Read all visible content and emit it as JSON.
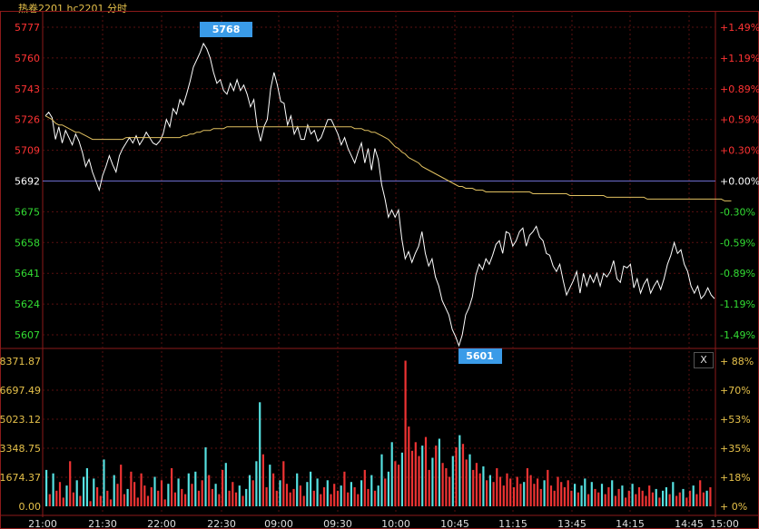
{
  "title": "热卷2201 hc2201 分时",
  "colors": {
    "up": "#ff3333",
    "down": "#33dd33",
    "neutral": "#ffffff",
    "volume_axis": "#e6c14a",
    "price_line": "#ffffff",
    "avg_line": "#e0c060",
    "badge": "#3a9be8",
    "vol_up": "#ee3333",
    "vol_down": "#55e0e0"
  },
  "close_label": "X",
  "chart_data": {
    "type": "line",
    "title": "",
    "prev_close": 5692,
    "price_axis": {
      "ticks": [
        5777,
        5760,
        5743,
        5726,
        5709,
        5692,
        5675,
        5658,
        5641,
        5624,
        5607
      ],
      "labels": [
        "5777",
        "5760",
        "5743",
        "5726",
        "5709",
        "5692",
        "5675",
        "5658",
        "5641",
        "5624",
        "5607"
      ],
      "ylim": [
        5600,
        5780
      ]
    },
    "percent_axis": {
      "labels": [
        "+1.49%",
        "+1.19%",
        "+0.89%",
        "+0.59%",
        "+0.30%",
        "+0.00%",
        "-0.30%",
        "-0.59%",
        "-0.89%",
        "-1.19%",
        "-1.49%"
      ]
    },
    "volume_axis": {
      "ticks": [
        8371.87,
        6697.49,
        5023.12,
        3348.75,
        1674.37,
        0
      ],
      "labels": [
        "8371.87",
        "6697.49",
        "5023.12",
        "3348.75",
        "1674.37",
        "0.00"
      ],
      "percent_labels": [
        "+ 88%",
        "+70%",
        "+53%",
        "+35%",
        "+18%",
        "+ 0%"
      ]
    },
    "x_labels": [
      "21:00",
      "21:30",
      "22:00",
      "22:30",
      "09:00",
      "09:30",
      "10:00",
      "10:45",
      "11:15",
      "13:45",
      "14:15",
      "14:45",
      "15:00"
    ],
    "high": {
      "value": 5768,
      "label": "5768"
    },
    "low": {
      "value": 5601,
      "label": "5601"
    },
    "series": [
      {
        "values": [
          5728,
          5730,
          5727,
          5715,
          5722,
          5713,
          5720,
          5716,
          5712,
          5718,
          5714,
          5708,
          5700,
          5704,
          5697,
          5692,
          5687,
          5695,
          5700,
          5706,
          5701,
          5697,
          5706,
          5710,
          5713,
          5716,
          5713,
          5717,
          5712,
          5715,
          5719,
          5716,
          5713,
          5712,
          5714,
          5718,
          5726,
          5722,
          5732,
          5729,
          5737,
          5734,
          5740,
          5747,
          5755,
          5759,
          5763,
          5768,
          5765,
          5760,
          5752,
          5746,
          5748,
          5742,
          5740,
          5746,
          5742,
          5748,
          5742,
          5745,
          5740,
          5733,
          5737,
          5722,
          5714,
          5722,
          5726,
          5743,
          5752,
          5745,
          5736,
          5735,
          5723,
          5728,
          5718,
          5722,
          5715,
          5715,
          5723,
          5718,
          5720,
          5714,
          5716,
          5721,
          5726,
          5726,
          5722,
          5718,
          5712,
          5716,
          5710,
          5706,
          5702,
          5708,
          5713,
          5702,
          5710,
          5698,
          5710,
          5704,
          5690,
          5682,
          5672,
          5676,
          5672,
          5676,
          5660,
          5649,
          5653,
          5647,
          5652,
          5656,
          5664,
          5652,
          5645,
          5649,
          5639,
          5634,
          5626,
          5622,
          5618,
          5610,
          5606,
          5601,
          5607,
          5618,
          5622,
          5628,
          5640,
          5646,
          5643,
          5649,
          5646,
          5651,
          5657,
          5659,
          5652,
          5664,
          5663,
          5656,
          5659,
          5664,
          5666,
          5656,
          5662,
          5664,
          5667,
          5661,
          5659,
          5652,
          5651,
          5645,
          5642,
          5646,
          5637,
          5629,
          5633,
          5637,
          5642,
          5630,
          5641,
          5634,
          5640,
          5636,
          5641,
          5634,
          5641,
          5639,
          5642,
          5648,
          5638,
          5636,
          5645,
          5644,
          5646,
          5633,
          5638,
          5630,
          5635,
          5638,
          5630,
          5634,
          5637,
          5632,
          5638,
          5646,
          5651,
          5658,
          5652,
          5654,
          5646,
          5642,
          5634,
          5630,
          5634,
          5627,
          5629,
          5633,
          5629,
          5627
        ]
      },
      {
        "values": [
          5728,
          5727,
          5726,
          5724,
          5723,
          5723,
          5722,
          5721,
          5720,
          5719,
          5719,
          5718,
          5717,
          5716,
          5715,
          5715,
          5715,
          5715,
          5715,
          5715,
          5715,
          5715,
          5715,
          5715,
          5716,
          5716,
          5716,
          5716,
          5716,
          5716,
          5716,
          5716,
          5716,
          5716,
          5716,
          5716,
          5716,
          5716,
          5716,
          5716,
          5716,
          5717,
          5717,
          5718,
          5718,
          5719,
          5719,
          5720,
          5720,
          5720,
          5721,
          5721,
          5721,
          5721,
          5722,
          5722,
          5722,
          5722,
          5722,
          5722,
          5722,
          5722,
          5722,
          5722,
          5722,
          5722,
          5722,
          5722,
          5722,
          5722,
          5722,
          5722,
          5722,
          5722,
          5722,
          5722,
          5722,
          5722,
          5722,
          5722,
          5722,
          5722,
          5722,
          5722,
          5722,
          5722,
          5722,
          5722,
          5722,
          5722,
          5722,
          5722,
          5721,
          5721,
          5721,
          5720,
          5720,
          5719,
          5719,
          5718,
          5717,
          5716,
          5715,
          5713,
          5711,
          5710,
          5708,
          5707,
          5705,
          5704,
          5703,
          5702,
          5700,
          5699,
          5698,
          5697,
          5696,
          5695,
          5694,
          5693,
          5692,
          5691,
          5690,
          5689,
          5689,
          5688,
          5688,
          5688,
          5687,
          5687,
          5687,
          5686,
          5686,
          5686,
          5686,
          5686,
          5686,
          5686,
          5686,
          5686,
          5686,
          5686,
          5686,
          5686,
          5686,
          5685,
          5685,
          5685,
          5685,
          5685,
          5685,
          5685,
          5685,
          5685,
          5685,
          5685,
          5684,
          5684,
          5684,
          5684,
          5684,
          5684,
          5684,
          5684,
          5684,
          5684,
          5684,
          5683,
          5683,
          5683,
          5683,
          5683,
          5683,
          5683,
          5683,
          5683,
          5683,
          5683,
          5683,
          5682,
          5682,
          5682,
          5682,
          5682,
          5682,
          5682,
          5682,
          5682,
          5682,
          5682,
          5682,
          5682,
          5682,
          5682,
          5682,
          5682,
          5682,
          5682,
          5682,
          5682,
          5682,
          5682,
          5681,
          5681,
          5681
        ]
      }
    ],
    "volume": [
      2100,
      700,
      1900,
      900,
      1400,
      500,
      1200,
      2600,
      800,
      1500,
      600,
      1700,
      2200,
      300,
      1600,
      1100,
      600,
      2700,
      900,
      400,
      1800,
      1300,
      2400,
      700,
      1000,
      2000,
      1400,
      500,
      1900,
      1200,
      600,
      1100,
      1700,
      900,
      1500,
      400,
      1300,
      2200,
      800,
      1600,
      1000,
      700,
      1900,
      1300,
      2000,
      900,
      1500,
      3400,
      1800,
      1000,
      1300,
      700,
      2100,
      2500,
      900,
      1400,
      800,
      1200,
      600,
      1000,
      1800,
      1500,
      2600,
      6000,
      3000,
      1100,
      2400,
      1900,
      900,
      1500,
      2600,
      1300,
      800,
      1000,
      1900,
      1200,
      600,
      1400,
      2000,
      900,
      1600,
      700,
      1100,
      1500,
      700,
      1300,
      900,
      1200,
      2000,
      800,
      1400,
      1100,
      700,
      1500,
      2100,
      1000,
      1800,
      900,
      1200,
      3000,
      1600,
      2000,
      3700,
      2600,
      2400,
      3100,
      8400,
      4600,
      3200,
      3700,
      2900,
      3500,
      4000,
      2100,
      2800,
      3500,
      3900,
      2500,
      2200,
      1700,
      2900,
      3400,
      4100,
      3600,
      2700,
      3000,
      2100,
      2500,
      1900,
      2300,
      1500,
      1800,
      1400,
      2200,
      1700,
      1200,
      1900,
      1600,
      1100,
      1700,
      1300,
      1400,
      2200,
      1800,
      1300,
      1600,
      1000,
      1500,
      2100,
      1200,
      900,
      1700,
      1400,
      1100,
      1500,
      900,
      1300,
      800,
      1200,
      1600,
      700,
      1400,
      1000,
      800,
      1300,
      700,
      1100,
      1500,
      600,
      1000,
      1200,
      500,
      900,
      1300,
      700,
      1100,
      900,
      600,
      1200,
      800,
      1000,
      500,
      900,
      1100,
      700,
      1400,
      600,
      800,
      1000,
      500,
      900,
      1200,
      700,
      1500,
      800,
      900,
      1100
    ]
  }
}
